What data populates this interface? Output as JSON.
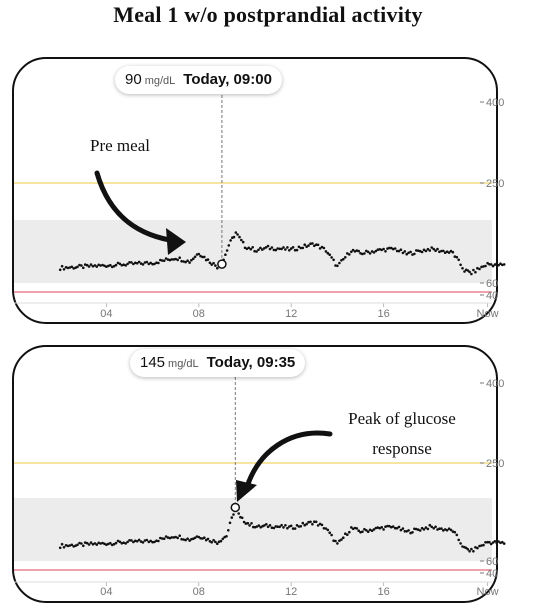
{
  "title": "Meal 1 w/o postprandial activity",
  "colors": {
    "target_band": "#ececec",
    "high_line": "#f0d36a",
    "low_line": "#e46a7e",
    "series": "#111111",
    "axis_text": "#777777",
    "frame": "#111111"
  },
  "chart_data": [
    {
      "type": "scatter",
      "title": "",
      "xlabel": "",
      "ylabel": "",
      "x_ticks": [
        "04",
        "08",
        "12",
        "16",
        "Now"
      ],
      "y_ticks": [
        "400",
        "250",
        "60",
        "40"
      ],
      "target_range": [
        60,
        160
      ],
      "high_threshold": 250,
      "low_threshold": 60,
      "series": [
        {
          "name": "",
          "x": [
            2.0,
            3.0,
            3.5,
            4.0,
            5.0,
            6.0,
            7.0,
            7.6,
            8.0,
            8.4,
            8.8,
            9.0,
            9.3,
            9.6,
            10.0,
            10.5,
            11.0,
            12.0,
            13.0,
            13.5,
            14.0,
            14.6,
            15.0,
            15.5,
            16.0,
            16.5,
            17.0,
            18.0,
            19.0,
            19.5,
            19.8,
            20.5,
            21.3
          ],
          "y": [
            84,
            86,
            87,
            88,
            90,
            92,
            100,
            94,
            108,
            96,
            86,
            90,
            120,
            140,
            118,
            112,
            116,
            113,
            122,
            112,
            86,
            112,
            107,
            110,
            113,
            114,
            106,
            114,
            108,
            80,
            76,
            90,
            88
          ]
        }
      ],
      "highlight": {
        "x": 9.0,
        "y": 90
      },
      "callout": {
        "value": "90",
        "unit": "mg/dL",
        "time": "Today, 09:00"
      },
      "annotation": "Pre meal"
    },
    {
      "type": "scatter",
      "title": "",
      "xlabel": "",
      "ylabel": "",
      "x_ticks": [
        "04",
        "08",
        "12",
        "16",
        "Now"
      ],
      "y_ticks": [
        "400",
        "250",
        "60",
        "40"
      ],
      "target_range": [
        60,
        160
      ],
      "high_threshold": 250,
      "low_threshold": 60,
      "series": [
        {
          "name": "",
          "x": [
            2.0,
            3.0,
            3.5,
            4.0,
            5.0,
            6.0,
            7.0,
            7.6,
            8.0,
            8.4,
            8.8,
            9.2,
            9.58,
            9.8,
            10.2,
            10.6,
            11.0,
            12.0,
            13.0,
            13.5,
            14.0,
            14.6,
            15.0,
            15.5,
            16.0,
            16.5,
            17.0,
            18.0,
            19.0,
            19.5,
            19.8,
            20.5,
            21.3
          ],
          "y": [
            84,
            86,
            87,
            88,
            90,
            92,
            100,
            94,
            100,
            94,
            90,
            100,
            145,
            128,
            118,
            114,
            116,
            113,
            122,
            112,
            86,
            112,
            107,
            110,
            113,
            114,
            106,
            114,
            108,
            80,
            76,
            90,
            88
          ]
        }
      ],
      "highlight": {
        "x": 9.58,
        "y": 145
      },
      "callout": {
        "value": "145",
        "unit": "mg/dL",
        "time": "Today, 09:35"
      },
      "annotation_lines": [
        "Peak of glucose",
        "response"
      ]
    }
  ]
}
